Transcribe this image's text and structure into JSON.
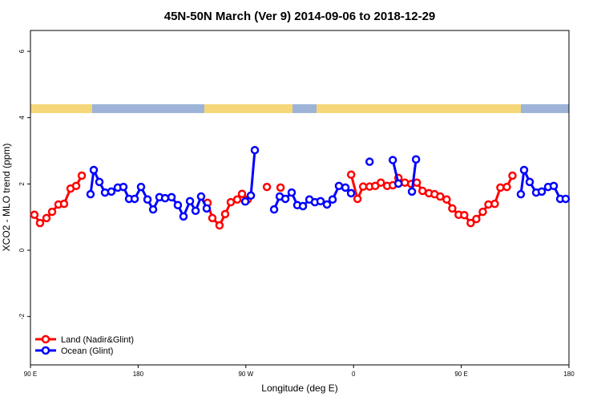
{
  "chart_data": {
    "type": "line",
    "title": "45N-50N March (Ver 9)   2014-09-06 to 2018-12-29",
    "x_label": "Longitude (deg E)",
    "y_label": "XCO2 - MLO trend (ppm)",
    "xlim": [
      90,
      540
    ],
    "ylim": [
      -3.46,
      6.63
    ],
    "xticks": [
      {
        "value": 90,
        "label": "90 E"
      },
      180,
      {
        "value": 270,
        "label": "90 W"
      },
      {
        "value": 360,
        "label": "0"
      },
      {
        "value": 450,
        "label": "90 E"
      },
      {
        "value": 540,
        "label": "180"
      }
    ],
    "yticks": [
      -2,
      0,
      2,
      4,
      6
    ],
    "grid": false,
    "legend": "bottom-left",
    "series": [
      {
        "name": "Land (Nadir&Glint)",
        "color": "#ff0000",
        "x": [
          93.3,
          98.0,
          103.4,
          108.1,
          113.4,
          118.1,
          123.5,
          128.2,
          132.9,
          null,
          238.0,
          242.0,
          248.0,
          252.7,
          257.4,
          262.8,
          266.8,
          271.5,
          null,
          287.6,
          null,
          299.0,
          null,
          358.0,
          363.3,
          368.0,
          373.4,
          378.1,
          382.8,
          388.1,
          392.8,
          397.5,
          402.9,
          408.2,
          412.9,
          417.6,
          423.0,
          427.7,
          432.4,
          437.8,
          442.5,
          447.8,
          452.5,
          457.9,
          462.6,
          468.0,
          472.7,
          478.0,
          482.7,
          488.1,
          492.8
        ],
        "values": [
          1.07,
          0.82,
          0.97,
          1.16,
          1.38,
          1.4,
          1.86,
          1.94,
          2.25,
          null,
          1.43,
          0.97,
          0.75,
          1.09,
          1.45,
          1.53,
          1.7,
          1.53,
          null,
          1.91,
          null,
          1.89,
          null,
          2.28,
          1.55,
          1.92,
          1.92,
          1.94,
          2.04,
          1.94,
          1.96,
          2.18,
          2.04,
          2.0,
          2.04,
          1.79,
          1.72,
          1.69,
          1.62,
          1.53,
          1.26,
          1.07,
          1.06,
          0.82,
          0.94,
          1.16,
          1.38,
          1.4,
          1.89,
          1.91,
          2.25
        ]
      },
      {
        "name": "Ocean (Glint)",
        "color": "#0000ff",
        "x": [
          140.2,
          142.9,
          147.6,
          152.3,
          157.6,
          163.0,
          167.7,
          172.4,
          177.1,
          182.4,
          187.8,
          192.5,
          197.8,
          202.5,
          207.9,
          213.2,
          217.9,
          223.3,
          228.0,
          232.6,
          237.3,
          null,
          269.5,
          274.2,
          277.5,
          null,
          293.6,
          298.3,
          303.0,
          308.3,
          313.0,
          317.7,
          323.1,
          327.7,
          332.4,
          337.8,
          342.5,
          347.8,
          353.2,
          357.9,
          null,
          373.4,
          null,
          392.8,
          397.5,
          null,
          408.8,
          412.2,
          null,
          499.8,
          502.5,
          507.2,
          512.6,
          517.3,
          522.6,
          527.3,
          532.7,
          537.3
        ],
        "values": [
          1.69,
          2.42,
          2.06,
          1.74,
          1.77,
          1.89,
          1.91,
          1.55,
          1.55,
          1.91,
          1.53,
          1.23,
          1.6,
          1.57,
          1.6,
          1.36,
          1.02,
          1.48,
          1.19,
          1.62,
          1.26,
          null,
          1.47,
          1.65,
          3.02,
          null,
          1.23,
          1.62,
          1.55,
          1.74,
          1.36,
          1.33,
          1.53,
          1.45,
          1.48,
          1.38,
          1.53,
          1.94,
          1.89,
          1.72,
          null,
          2.67,
          null,
          2.72,
          2.01,
          null,
          1.77,
          2.74,
          null,
          1.69,
          2.42,
          2.06,
          1.74,
          1.77,
          1.91,
          1.94,
          1.55,
          1.55
        ]
      }
    ]
  }
}
